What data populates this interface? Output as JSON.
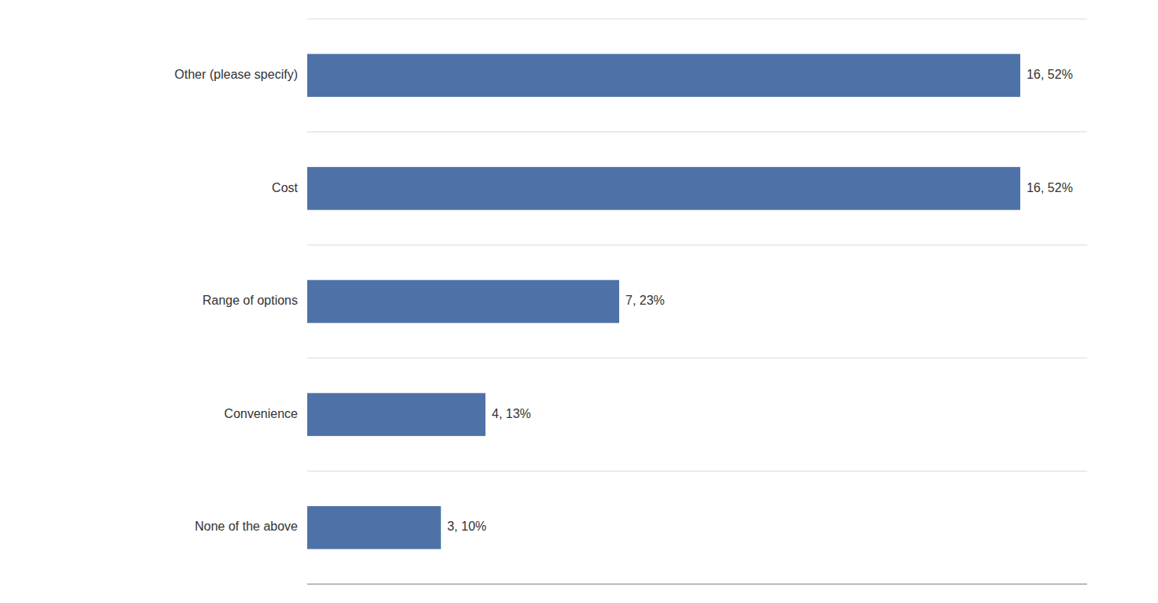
{
  "chart_data": {
    "type": "bar",
    "orientation": "horizontal",
    "categories": [
      "None of the above",
      "Convenience",
      "Range of options",
      "Cost",
      "Other (please specify)"
    ],
    "values": [
      3,
      4,
      7,
      16,
      16
    ],
    "value_labels": [
      "3, 10%",
      "4, 13%",
      "7, 23%",
      "16, 52%",
      "16, 52%"
    ],
    "data_labels": true,
    "color": "#4e72a8",
    "xlim": [
      0,
      17.5
    ],
    "tick_labels": "y"
  }
}
